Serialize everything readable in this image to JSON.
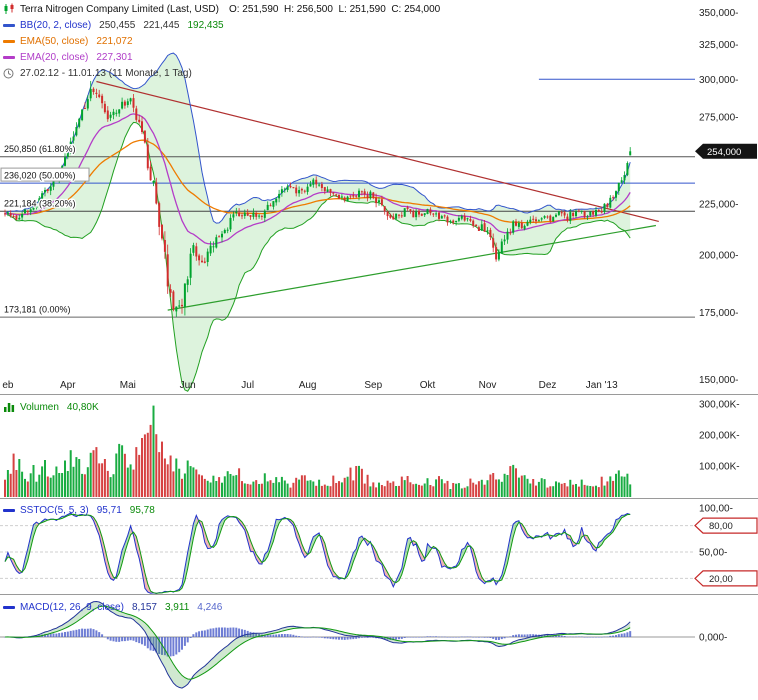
{
  "main_legend": {
    "title": "Terra Nitrogen Company Limited (Last, USD)",
    "ohlc": "O: 251,590  H: 256,500  L: 251,590  C: 254,000",
    "bb_label": "BB(20, 2, close)",
    "bb_v1": "250,455",
    "bb_v2": "221,445",
    "bb_v3": "192,435",
    "ema50_label": "EMA(50, close)",
    "ema50_value": "221,072",
    "ema20_label": "EMA(20, close)",
    "ema20_value": "227,301",
    "range": "27.02.12 - 11.01.13 (11 Monate, 1 Tag)"
  },
  "volume_legend": {
    "label": "Volumen",
    "value": "40,80K"
  },
  "stoch_legend": {
    "label": "SSTOC(5, 5, 3)",
    "v1": "95,71",
    "v2": "95,78"
  },
  "macd_legend": {
    "label": "MACD(12, 26, 9, close)",
    "v1": "8,157",
    "v2": "3,911",
    "v3": "4,246"
  },
  "chart_data": {
    "type": "candlestick",
    "panels": [
      "price",
      "volume",
      "stochastic",
      "macd"
    ],
    "title": "Terra Nitrogen Company Limited",
    "unit": "USD",
    "scale": "log",
    "days": 220,
    "seed": 7,
    "x_axis": {
      "start": "27.02.12",
      "end": "11.01.13",
      "months": [
        {
          "label": "eb",
          "day": 1
        },
        {
          "label": "Apr",
          "day": 22
        },
        {
          "label": "Mai",
          "day": 43
        },
        {
          "label": "Jun",
          "day": 64
        },
        {
          "label": "Jul",
          "day": 85
        },
        {
          "label": "Aug",
          "day": 106
        },
        {
          "label": "Sep",
          "day": 129
        },
        {
          "label": "Okt",
          "day": 148
        },
        {
          "label": "Nov",
          "day": 169
        },
        {
          "label": "Dez",
          "day": 190
        },
        {
          "label": "Jan '13",
          "day": 209
        }
      ]
    },
    "price_axis": {
      "ylim": [
        147000,
        357000
      ],
      "ticks": [
        {
          "v": 350,
          "label": "350,000"
        },
        {
          "v": 325,
          "label": "325,000"
        },
        {
          "v": 300,
          "label": "300,000"
        },
        {
          "v": 275,
          "label": "275,000"
        },
        {
          "v": 225,
          "label": "225,000"
        },
        {
          "v": 200,
          "label": "200,000"
        },
        {
          "v": 175,
          "label": "175,000"
        },
        {
          "v": 150,
          "label": "150,000"
        }
      ],
      "tag": {
        "v": 254,
        "label": "254,000"
      }
    },
    "ohlc_last": {
      "o": 251.59,
      "h": 256.5,
      "l": 251.59,
      "c": 254.0
    },
    "price_anchors": [
      [
        0,
        222,
        2.2
      ],
      [
        4,
        218,
        2.2
      ],
      [
        8,
        221,
        2.2
      ],
      [
        12,
        227,
        2.4
      ],
      [
        16,
        233,
        2.6
      ],
      [
        20,
        244,
        3.2
      ],
      [
        24,
        262,
        3.8
      ],
      [
        27,
        280,
        4.2
      ],
      [
        30,
        291,
        4.0
      ],
      [
        32,
        293,
        3.6
      ],
      [
        34,
        284,
        3.8
      ],
      [
        36,
        273,
        3.8
      ],
      [
        38,
        277,
        3.4
      ],
      [
        41,
        283,
        3.2
      ],
      [
        44,
        285,
        3.2
      ],
      [
        46,
        276,
        3.6
      ],
      [
        48,
        262,
        4.2
      ],
      [
        50,
        248,
        4.8
      ],
      [
        52,
        232,
        5.4
      ],
      [
        54,
        214,
        5.8
      ],
      [
        56,
        197,
        5.6
      ],
      [
        58,
        183,
        4.6
      ],
      [
        60,
        175,
        3.2
      ],
      [
        62,
        181,
        4.0
      ],
      [
        64,
        192,
        4.4
      ],
      [
        66,
        203,
        3.8
      ],
      [
        68,
        198,
        3.6
      ],
      [
        70,
        196,
        3.2
      ],
      [
        73,
        204,
        3.0
      ],
      [
        76,
        209,
        2.8
      ],
      [
        80,
        219,
        2.6
      ],
      [
        84,
        222,
        2.4
      ],
      [
        88,
        217,
        2.4
      ],
      [
        92,
        224,
        2.4
      ],
      [
        96,
        230,
        2.4
      ],
      [
        100,
        234,
        2.3
      ],
      [
        104,
        230,
        2.3
      ],
      [
        108,
        236,
        2.3
      ],
      [
        112,
        233,
        2.2
      ],
      [
        116,
        229,
        2.2
      ],
      [
        120,
        227,
        2.2
      ],
      [
        124,
        231,
        2.6
      ],
      [
        128,
        230,
        2.4
      ],
      [
        132,
        223,
        2.4
      ],
      [
        136,
        217,
        2.2
      ],
      [
        140,
        221,
        2.0
      ],
      [
        144,
        219,
        2.0
      ],
      [
        148,
        222,
        2.0
      ],
      [
        152,
        218,
        2.0
      ],
      [
        156,
        216,
        2.0
      ],
      [
        160,
        219,
        2.0
      ],
      [
        164,
        214,
        2.2
      ],
      [
        168,
        212,
        2.4
      ],
      [
        170,
        206,
        2.8
      ],
      [
        172,
        199,
        2.6
      ],
      [
        174,
        204,
        2.6
      ],
      [
        176,
        210,
        2.4
      ],
      [
        179,
        216,
        2.2
      ],
      [
        182,
        213,
        2.0
      ],
      [
        185,
        217,
        2.0
      ],
      [
        188,
        219,
        1.9
      ],
      [
        191,
        216,
        1.9
      ],
      [
        194,
        220,
        1.8
      ],
      [
        197,
        218,
        1.8
      ],
      [
        200,
        221,
        1.8
      ],
      [
        203,
        219,
        1.8
      ],
      [
        206,
        221,
        1.8
      ],
      [
        209,
        222,
        1.9
      ],
      [
        211,
        225,
        2.0
      ],
      [
        213,
        229,
        2.1
      ],
      [
        215,
        235,
        2.4
      ],
      [
        217,
        242,
        2.5
      ],
      [
        218,
        247,
        2.2
      ],
      [
        219,
        254,
        0.6
      ]
    ],
    "volume_axis": {
      "ticks": [
        {
          "v": 300,
          "label": "300,00K"
        },
        {
          "v": 200,
          "label": "200,00K"
        },
        {
          "v": 100,
          "label": "100,00K"
        }
      ],
      "last_value": 40.8
    },
    "volume_anchors": [
      [
        0,
        55
      ],
      [
        2,
        95
      ],
      [
        4,
        115
      ],
      [
        6,
        75
      ],
      [
        8,
        55
      ],
      [
        10,
        80
      ],
      [
        12,
        65
      ],
      [
        14,
        90
      ],
      [
        16,
        60
      ],
      [
        18,
        75
      ],
      [
        20,
        70
      ],
      [
        22,
        105
      ],
      [
        24,
        120
      ],
      [
        26,
        128
      ],
      [
        28,
        95
      ],
      [
        30,
        118
      ],
      [
        32,
        135
      ],
      [
        34,
        105
      ],
      [
        36,
        88
      ],
      [
        38,
        80
      ],
      [
        40,
        132
      ],
      [
        42,
        118
      ],
      [
        44,
        108
      ],
      [
        46,
        125
      ],
      [
        48,
        148
      ],
      [
        50,
        195
      ],
      [
        52,
        288
      ],
      [
        53,
        205
      ],
      [
        54,
        168
      ],
      [
        56,
        142
      ],
      [
        58,
        112
      ],
      [
        60,
        96
      ],
      [
        62,
        84
      ],
      [
        64,
        96
      ],
      [
        66,
        86
      ],
      [
        68,
        72
      ],
      [
        70,
        62
      ],
      [
        72,
        58
      ],
      [
        74,
        76
      ],
      [
        76,
        54
      ],
      [
        78,
        68
      ],
      [
        80,
        58
      ],
      [
        82,
        72
      ],
      [
        84,
        50
      ],
      [
        86,
        62
      ],
      [
        88,
        46
      ],
      [
        90,
        56
      ],
      [
        92,
        64
      ],
      [
        94,
        48
      ],
      [
        96,
        54
      ],
      [
        98,
        60
      ],
      [
        100,
        46
      ],
      [
        102,
        52
      ],
      [
        104,
        58
      ],
      [
        106,
        48
      ],
      [
        108,
        42
      ],
      [
        110,
        54
      ],
      [
        112,
        46
      ],
      [
        114,
        50
      ],
      [
        116,
        56
      ],
      [
        118,
        48
      ],
      [
        120,
        66
      ],
      [
        122,
        78
      ],
      [
        124,
        88
      ],
      [
        126,
        60
      ],
      [
        128,
        48
      ],
      [
        130,
        44
      ],
      [
        132,
        52
      ],
      [
        134,
        46
      ],
      [
        136,
        40
      ],
      [
        138,
        48
      ],
      [
        140,
        56
      ],
      [
        142,
        62
      ],
      [
        144,
        38
      ],
      [
        146,
        46
      ],
      [
        148,
        52
      ],
      [
        150,
        40
      ],
      [
        152,
        50
      ],
      [
        154,
        44
      ],
      [
        156,
        36
      ],
      [
        158,
        42
      ],
      [
        160,
        38
      ],
      [
        162,
        46
      ],
      [
        164,
        42
      ],
      [
        166,
        48
      ],
      [
        168,
        52
      ],
      [
        170,
        62
      ],
      [
        172,
        58
      ],
      [
        174,
        54
      ],
      [
        176,
        72
      ],
      [
        178,
        96
      ],
      [
        179,
        108
      ],
      [
        180,
        84
      ],
      [
        182,
        62
      ],
      [
        184,
        52
      ],
      [
        186,
        46
      ],
      [
        188,
        50
      ],
      [
        190,
        44
      ],
      [
        192,
        40
      ],
      [
        194,
        46
      ],
      [
        196,
        38
      ],
      [
        198,
        42
      ],
      [
        200,
        36
      ],
      [
        202,
        42
      ],
      [
        204,
        38
      ],
      [
        206,
        44
      ],
      [
        208,
        48
      ],
      [
        210,
        56
      ],
      [
        212,
        62
      ],
      [
        214,
        68
      ],
      [
        216,
        78
      ],
      [
        218,
        86
      ],
      [
        219,
        44
      ]
    ],
    "fibonacci": [
      {
        "price": 250.85,
        "label": "250,850 (61.80%)",
        "color": "#555555",
        "boxed": false
      },
      {
        "price": 236.02,
        "label": "236,020 (50.00%)",
        "color": "#3355cc",
        "boxed": true
      },
      {
        "price": 221.184,
        "label": "221,184 (38.20%)",
        "color": "#444444",
        "boxed": false
      },
      {
        "price": 173.181,
        "label": "173,181 (0.00%)",
        "color": "#666666",
        "boxed": false
      }
    ],
    "trendlines": [
      {
        "from": [
          32,
          298.5
        ],
        "to": [
          229,
          216.0
        ],
        "color": "#b03030"
      },
      {
        "from": [
          57,
          176.0
        ],
        "to": [
          228,
          214.0
        ],
        "color": "#2d9e2d"
      }
    ],
    "hlines": [
      {
        "price": 300,
        "from_day": 187,
        "color": "#3355cc"
      }
    ],
    "indicators": {
      "bb": {
        "period": 20,
        "dev": 2
      },
      "ema_fast": 20,
      "ema_slow": 50,
      "stoch": [
        5,
        5,
        3
      ],
      "macd": [
        12,
        26,
        9
      ]
    },
    "stoch_axis": {
      "ticks": [
        {
          "v": 100,
          "label": "100,00"
        },
        {
          "v": 50,
          "label": "50,00"
        }
      ],
      "tags": [
        {
          "v": 80,
          "label": "80,00"
        },
        {
          "v": 20,
          "label": "20,00"
        }
      ],
      "ref_lines": [
        80,
        50,
        20
      ]
    },
    "macd_axis": {
      "ticks": [
        {
          "v": 0,
          "label": "0,000"
        }
      ]
    },
    "colors": {
      "up": "#00a32e",
      "down": "#d22d2d",
      "bb_fill": "#d4f0d4",
      "bb_upper": "#3355cc",
      "bb_lower": "#22a022",
      "ema50": "#ee7b00",
      "ema20": "#b43cc8",
      "stoch_k": "#2233cc",
      "stoch_d": "#119911",
      "macd_line": "#223399",
      "macd_signal": "#119911",
      "macd_hist": "#5566cc"
    }
  }
}
